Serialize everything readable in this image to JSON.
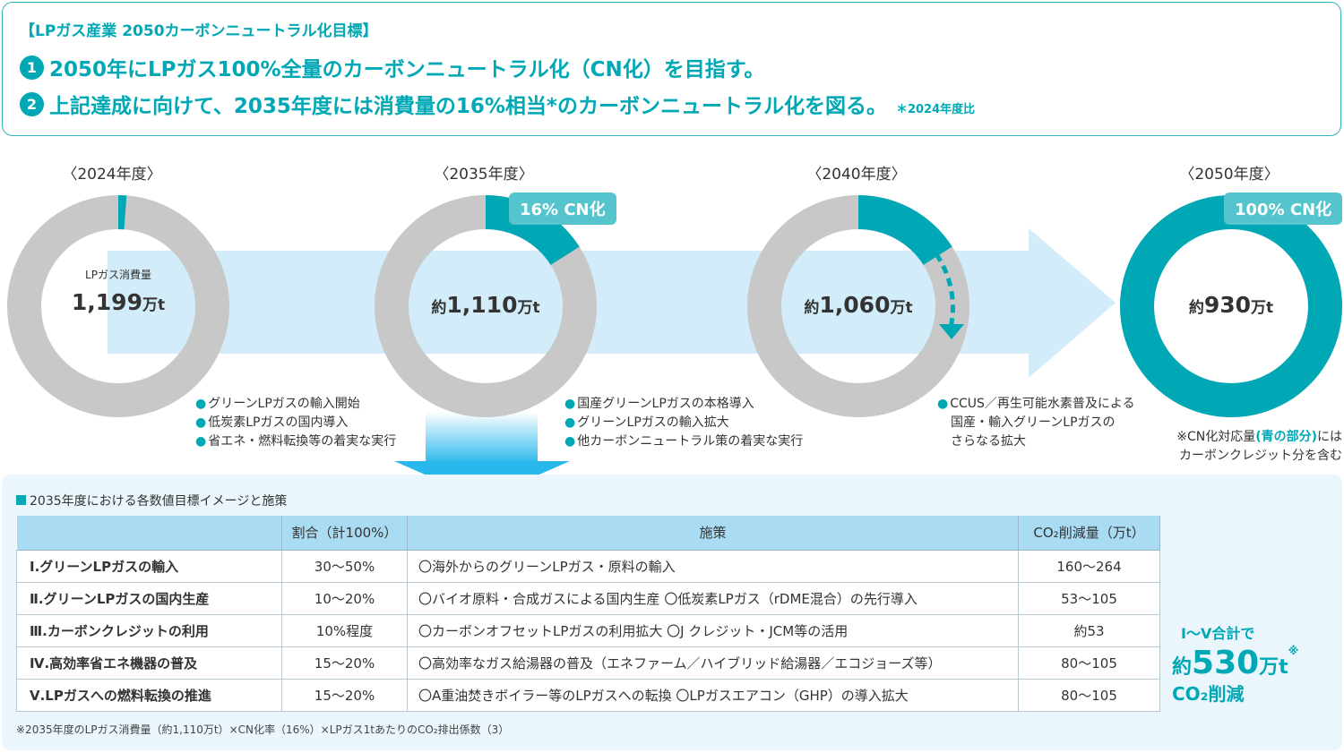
{
  "header": {
    "title": "【LPガス産業 2050カーボンニュートラル化目標】",
    "goal_1_num": "1",
    "goal_1_text": "2050年にLPガス100%全量のカーボンニュートラル化（CN化）を目指す。",
    "goal_2_num": "2",
    "goal_2_text": "上記達成に向けて、2035年度には消費量の16%相当*のカーボンニュートラル化を図る。",
    "goal_2_note": "＊2024年度比"
  },
  "timeline": [
    {
      "year": "〈2024年度〉",
      "center_label": "LPガス消費量",
      "center_pre": "",
      "center_num": "1,199",
      "center_unit": "万t",
      "cn_share": 0.012
    },
    {
      "year": "〈2035年度〉",
      "center_pre": "約",
      "center_num": "1,110",
      "center_unit": "万t",
      "badge": "16% CN化",
      "cn_share": 0.16
    },
    {
      "year": "〈2040年度〉",
      "center_pre": "約",
      "center_num": "1,060",
      "center_unit": "万t",
      "cn_share": 0.16
    },
    {
      "year": "〈2050年度〉",
      "center_pre": "約",
      "center_num": "930",
      "center_unit": "万t",
      "badge": "100% CN化",
      "cn_share": 1.0
    }
  ],
  "bullets_2024": [
    "グリーンLPガスの輸入開始",
    "低炭素LPガスの国内導入",
    "省エネ・燃料転換等の着実な実行"
  ],
  "bullets_2035": [
    "国産グリーンLPガスの本格導入",
    "グリーンLPガスの輸入拡大",
    "他カーボンニュートラル策の着実な実行"
  ],
  "bullets_2040": [
    "CCUS／再生可能水素普及による",
    "国産・輸入グリーンLPガスの",
    "さらなる拡大"
  ],
  "note_2050": {
    "pre": "※CN化対応量",
    "hl": "(青の部分)",
    "post": "には",
    "line2": "カーボンクレジット分を含む"
  },
  "table": {
    "heading": "2035年度における各数値目標イメージと施策",
    "headers": [
      "",
      "割合（計100%）",
      "施策",
      "CO₂削減量（万t）"
    ],
    "rows": [
      {
        "name": "Ⅰ.グリーンLPガスの輸入",
        "ratio": "30～50%",
        "policy": "〇海外からのグリーンLPガス・原料の輸入",
        "co2": "160～264"
      },
      {
        "name": "Ⅱ.グリーンLPガスの国内生産",
        "ratio": "10～20%",
        "policy": "〇バイオ原料・合成ガスによる国内生産 〇低炭素LPガス（rDME混合）の先行導入",
        "co2": "53～105"
      },
      {
        "name": "Ⅲ.カーボンクレジットの利用",
        "ratio": "10%程度",
        "policy": "〇カーボンオフセットLPガスの利用拡大 〇J クレジット・JCM等の活用",
        "co2": "約53"
      },
      {
        "name": "Ⅳ.高効率省エネ機器の普及",
        "ratio": "15～20%",
        "policy": "〇高効率なガス給湯器の普及（エネファーム／ハイブリッド給湯器／エコジョーズ等）",
        "co2": "80～105"
      },
      {
        "name": "Ⅴ.LPガスへの燃料転換の推進",
        "ratio": "15～20%",
        "policy": "〇A重油焚きボイラー等のLPガスへの転換 〇LPガスエアコン（GHP）の導入拡大",
        "co2": "80～105"
      }
    ]
  },
  "total": {
    "label": "Ⅰ～Ⅴ合計で",
    "pre": "約",
    "num": "530",
    "unit": "万t",
    "mark": "※",
    "suffix": "CO₂削減"
  },
  "footnote": "※2035年度のLPガス消費量（約1,110万t）×CN化率（16%）×LPガス1tあたりのCO₂排出係数（3）",
  "colors": {
    "teal": "#00a8b5",
    "gray": "#c8c8c8",
    "band": "#d3ecfa"
  }
}
